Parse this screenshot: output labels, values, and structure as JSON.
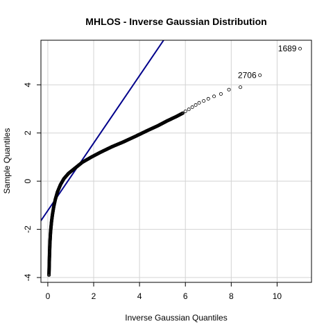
{
  "chart_data": {
    "type": "scatter",
    "title": "MHLOS - Inverse Gaussian Distribution",
    "xlabel": "Inverse Gaussian Quantiles",
    "ylabel": "Sample Quantiles",
    "xlim": [
      -0.3,
      11.5
    ],
    "ylim": [
      -4.2,
      5.85
    ],
    "x_ticks": [
      0,
      2,
      4,
      6,
      8,
      10
    ],
    "y_ticks": [
      -4,
      -2,
      0,
      2,
      4
    ],
    "x_tick_labels": [
      "0",
      "2",
      "4",
      "6",
      "8",
      "10"
    ],
    "y_tick_labels": [
      "-4",
      "-2",
      "0",
      "2",
      "4"
    ],
    "grid": true,
    "reference_line": {
      "slope": 1.4,
      "intercept": -1.22,
      "color": "#00008b"
    },
    "point_color": "#000000",
    "series": [
      {
        "curve_knots": {
          "x": [
            0.05,
            0.07,
            0.09,
            0.12,
            0.16,
            0.2,
            0.26,
            0.33,
            0.42,
            0.55,
            0.7,
            0.9,
            1.2,
            1.5,
            1.9,
            2.3,
            2.8,
            3.3,
            3.8,
            4.3,
            4.8,
            5.2,
            5.6,
            5.9
          ],
          "y": [
            -3.9,
            -3.2,
            -2.6,
            -2.1,
            -1.7,
            -1.4,
            -1.05,
            -0.75,
            -0.45,
            -0.15,
            0.1,
            0.32,
            0.55,
            0.78,
            1.0,
            1.2,
            1.43,
            1.63,
            1.85,
            2.08,
            2.3,
            2.5,
            2.68,
            2.83
          ]
        },
        "tail_points": {
          "x": [
            6.0,
            6.15,
            6.3,
            6.45,
            6.6,
            6.8,
            7.0,
            7.25,
            7.55,
            7.9,
            8.4,
            9.25,
            11.0
          ],
          "y": [
            2.9,
            2.98,
            3.07,
            3.16,
            3.25,
            3.33,
            3.42,
            3.52,
            3.62,
            3.8,
            3.9,
            4.4,
            5.5
          ]
        },
        "n_points": 2800
      }
    ],
    "annotations": [
      {
        "text": "1689",
        "x": 11.0,
        "y": 5.5,
        "side": "left"
      },
      {
        "text": "2706",
        "x": 9.25,
        "y": 4.4,
        "side": "left"
      }
    ]
  }
}
